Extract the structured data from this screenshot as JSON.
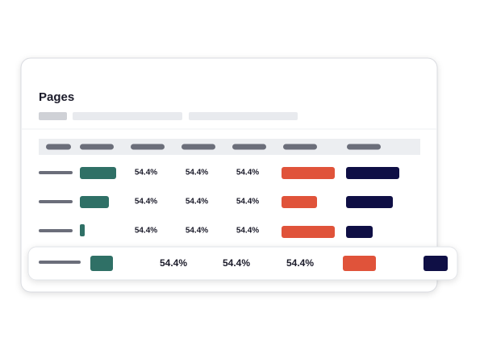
{
  "header": {
    "title": "Pages"
  },
  "table": {
    "rows": [
      [
        "54.4%",
        "54.4%",
        "54.4%"
      ],
      [
        "54.4%",
        "54.4%",
        "54.4%"
      ],
      [
        "54.4%",
        "54.4%",
        "54.4%"
      ],
      [
        "54.4%",
        "54.4%",
        "54.4%"
      ]
    ]
  }
}
